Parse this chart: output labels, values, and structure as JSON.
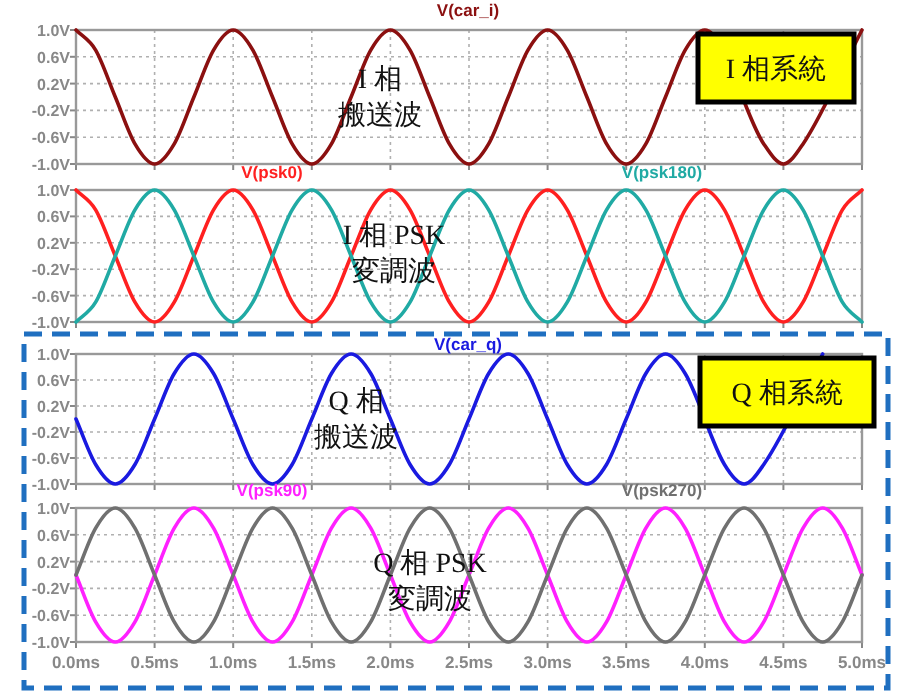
{
  "chart_data": [
    {
      "type": "line",
      "x": [
        0,
        0.125,
        0.25,
        0.375,
        0.5,
        0.625,
        0.75,
        0.875,
        1,
        1.125,
        1.25,
        1.375,
        1.5,
        1.625,
        1.75,
        1.875,
        2,
        2.125,
        2.25,
        2.375,
        2.5,
        2.625,
        2.75,
        2.875,
        3,
        3.125,
        3.25,
        3.375,
        3.5,
        3.625,
        3.75,
        3.875,
        4,
        4.125,
        4.25,
        4.375,
        4.5,
        4.625,
        4.75,
        4.875,
        5
      ],
      "series": [
        {
          "name": "V(car_i)",
          "color": "#8b1010",
          "values": [
            1,
            0.7,
            0,
            -0.7,
            -1,
            -0.7,
            0,
            0.7,
            1,
            0.7,
            0,
            -0.7,
            -1,
            -0.7,
            0,
            0.7,
            1,
            0.7,
            0,
            -0.7,
            -1,
            -0.7,
            0,
            0.7,
            1,
            0.7,
            0,
            -0.7,
            -1,
            -0.7,
            0,
            0.7,
            1,
            null,
            null,
            -0.7,
            -1,
            -0.7,
            null,
            null,
            1
          ]
        }
      ],
      "xlim": [
        0,
        5
      ],
      "xticks": [
        {
          "value": 0,
          "label": null
        },
        {
          "value": 0.5,
          "label": null
        },
        {
          "value": 1,
          "label": null
        },
        {
          "value": 1.5,
          "label": null
        },
        {
          "value": 2,
          "label": null
        },
        {
          "value": 2.5,
          "label": null
        },
        {
          "value": 3,
          "label": null
        },
        {
          "value": 3.5,
          "label": null
        },
        {
          "value": 4,
          "label": null
        },
        {
          "value": 4.5,
          "label": null
        },
        {
          "value": 5,
          "label": null
        }
      ],
      "ylim": [
        -1,
        1
      ],
      "yticks": [
        {
          "value": 1,
          "label": "1.0V"
        },
        {
          "value": 0.6,
          "label": "0.6V"
        },
        {
          "value": 0.2,
          "label": "0.2V"
        },
        {
          "value": -0.2,
          "label": "-0.2V"
        },
        {
          "value": -0.6,
          "label": "-0.6V"
        },
        {
          "value": -1,
          "label": "-1.0V"
        }
      ],
      "tick_labels": "y",
      "grid": true,
      "annotations": [
        "I 相",
        "搬送波",
        "I 相系統"
      ]
    },
    {
      "type": "line",
      "x": [
        0,
        0.125,
        0.25,
        0.375,
        0.5,
        0.625,
        0.75,
        0.875,
        1,
        1.125,
        1.25,
        1.375,
        1.5,
        1.625,
        1.75,
        1.875,
        2,
        2.125,
        2.25,
        2.375,
        2.5,
        2.625,
        2.75,
        2.875,
        3,
        3.125,
        3.25,
        3.375,
        3.5,
        3.625,
        3.75,
        3.875,
        4,
        4.125,
        4.25,
        4.375,
        4.5,
        4.625,
        4.75,
        4.875,
        5
      ],
      "series": [
        {
          "name": "V(psk0)",
          "color": "#ff2020",
          "values": [
            1,
            0.7,
            0,
            -0.7,
            -1,
            -0.7,
            0,
            0.7,
            1,
            0.7,
            0,
            -0.7,
            -1,
            -0.7,
            0,
            0.7,
            1,
            0.7,
            0,
            -0.7,
            -1,
            -0.7,
            0,
            0.7,
            1,
            0.7,
            0,
            -0.7,
            -1,
            -0.7,
            0,
            0.7,
            1,
            0.7,
            0,
            -0.7,
            -1,
            -0.7,
            0,
            0.7,
            1
          ]
        },
        {
          "name": "V(psk180)",
          "color": "#20aaa4",
          "values": [
            -1,
            -0.7,
            0,
            0.7,
            1,
            0.7,
            0,
            -0.7,
            -1,
            -0.7,
            0,
            0.7,
            1,
            0.7,
            0,
            -0.7,
            -1,
            -0.7,
            0,
            0.7,
            1,
            0.7,
            0,
            -0.7,
            -1,
            -0.7,
            0,
            0.7,
            1,
            0.7,
            0,
            -0.7,
            -1,
            -0.7,
            0,
            0.7,
            1,
            0.7,
            0,
            -0.7,
            -1
          ]
        }
      ],
      "xlim": [
        0,
        5
      ],
      "xticks": [
        {
          "value": 0,
          "label": null
        },
        {
          "value": 0.5,
          "label": null
        },
        {
          "value": 1,
          "label": null
        },
        {
          "value": 1.5,
          "label": null
        },
        {
          "value": 2,
          "label": null
        },
        {
          "value": 2.5,
          "label": null
        },
        {
          "value": 3,
          "label": null
        },
        {
          "value": 3.5,
          "label": null
        },
        {
          "value": 4,
          "label": null
        },
        {
          "value": 4.5,
          "label": null
        },
        {
          "value": 5,
          "label": null
        }
      ],
      "ylim": [
        -1,
        1
      ],
      "yticks": [
        {
          "value": 1,
          "label": "1.0V"
        },
        {
          "value": 0.6,
          "label": "0.6V"
        },
        {
          "value": 0.2,
          "label": "0.2V"
        },
        {
          "value": -0.2,
          "label": "-0.2V"
        },
        {
          "value": -0.6,
          "label": "-0.6V"
        },
        {
          "value": -1,
          "label": "-1.0V"
        }
      ],
      "tick_labels": "y",
      "grid": true,
      "annotations": [
        "I 相 PSK",
        "変調波"
      ]
    },
    {
      "type": "line",
      "x": [
        0,
        0.125,
        0.25,
        0.375,
        0.5,
        0.625,
        0.75,
        0.875,
        1,
        1.125,
        1.25,
        1.375,
        1.5,
        1.625,
        1.75,
        1.875,
        2,
        2.125,
        2.25,
        2.375,
        2.5,
        2.625,
        2.75,
        2.875,
        3,
        3.125,
        3.25,
        3.375,
        3.5,
        3.625,
        3.75,
        3.875,
        4,
        4.125,
        4.25,
        4.375,
        4.5,
        4.625,
        4.75
      ],
      "series": [
        {
          "name": "V(car_q)",
          "color": "#1a1ae0",
          "values": [
            0,
            -0.7,
            -1,
            -0.7,
            0,
            0.7,
            1,
            0.7,
            0,
            -0.7,
            -1,
            -0.7,
            0,
            0.7,
            1,
            0.7,
            0,
            -0.7,
            -1,
            -0.7,
            0,
            0.7,
            1,
            0.7,
            0,
            -0.7,
            -1,
            -0.7,
            0,
            0.7,
            1,
            0.7,
            null,
            -0.7,
            -1,
            -0.7,
            null,
            null,
            1
          ]
        }
      ],
      "xlim": [
        0,
        5
      ],
      "xticks": [
        {
          "value": 0,
          "label": null
        },
        {
          "value": 0.5,
          "label": null
        },
        {
          "value": 1,
          "label": null
        },
        {
          "value": 1.5,
          "label": null
        },
        {
          "value": 2,
          "label": null
        },
        {
          "value": 2.5,
          "label": null
        },
        {
          "value": 3,
          "label": null
        },
        {
          "value": 3.5,
          "label": null
        },
        {
          "value": 4,
          "label": null
        },
        {
          "value": 4.5,
          "label": null
        },
        {
          "value": 5,
          "label": null
        }
      ],
      "ylim": [
        -1,
        1
      ],
      "yticks": [
        {
          "value": 1,
          "label": "1.0V"
        },
        {
          "value": 0.6,
          "label": "0.6V"
        },
        {
          "value": 0.2,
          "label": "0.2V"
        },
        {
          "value": -0.2,
          "label": "-0.2V"
        },
        {
          "value": -0.6,
          "label": "-0.6V"
        },
        {
          "value": -1,
          "label": "-1.0V"
        }
      ],
      "tick_labels": "y",
      "grid": true,
      "annotations": [
        "Q 相",
        "搬送波",
        "Q 相系統"
      ]
    },
    {
      "type": "line",
      "x": [
        0,
        0.125,
        0.25,
        0.375,
        0.5,
        0.625,
        0.75,
        0.875,
        1,
        1.125,
        1.25,
        1.375,
        1.5,
        1.625,
        1.75,
        1.875,
        2,
        2.125,
        2.25,
        2.375,
        2.5,
        2.625,
        2.75,
        2.875,
        3,
        3.125,
        3.25,
        3.375,
        3.5,
        3.625,
        3.75,
        3.875,
        4,
        4.125,
        4.25,
        4.375,
        4.5,
        4.625,
        4.75,
        4.875,
        5.0
      ],
      "series": [
        {
          "name": "V(psk90)",
          "color": "#ff20ff",
          "values": [
            0,
            -0.7,
            -1,
            -0.7,
            0,
            0.7,
            1,
            0.7,
            0,
            -0.7,
            -1,
            -0.7,
            0,
            0.7,
            1,
            0.7,
            0,
            -0.7,
            -1,
            -0.7,
            0,
            0.7,
            1,
            0.7,
            0,
            -0.7,
            -1,
            -0.7,
            0,
            0.7,
            1,
            0.7,
            0,
            -0.7,
            -1,
            -0.7,
            0,
            0.7,
            1,
            0.7,
            0
          ]
        },
        {
          "name": "V(psk270)",
          "color": "#707070",
          "values": [
            0,
            0.7,
            1,
            0.7,
            0,
            -0.7,
            -1,
            -0.7,
            0,
            0.7,
            1,
            0.7,
            0,
            -0.7,
            -1,
            -0.7,
            0,
            0.7,
            1,
            0.7,
            0,
            -0.7,
            -1,
            -0.7,
            0,
            0.7,
            1,
            0.7,
            0,
            -0.7,
            -1,
            -0.7,
            0,
            0.7,
            1,
            0.7,
            0,
            -0.7,
            -1,
            -0.7,
            0
          ]
        }
      ],
      "xlim": [
        0,
        5
      ],
      "xticks": [
        {
          "value": 0,
          "label": "0.0ms"
        },
        {
          "value": 0.5,
          "label": "0.5ms"
        },
        {
          "value": 1,
          "label": "1.0ms"
        },
        {
          "value": 1.5,
          "label": "1.5ms"
        },
        {
          "value": 2,
          "label": "2.0ms"
        },
        {
          "value": 2.5,
          "label": "2.5ms"
        },
        {
          "value": 3,
          "label": "3.0ms"
        },
        {
          "value": 3.5,
          "label": "3.5ms"
        },
        {
          "value": 4,
          "label": "4.0ms"
        },
        {
          "value": 4.5,
          "label": "4.5ms"
        },
        {
          "value": 5,
          "label": "5.0ms"
        }
      ],
      "ylim": [
        -1,
        1
      ],
      "yticks": [
        {
          "value": 1,
          "label": "1.0V"
        },
        {
          "value": 0.6,
          "label": "0.6V"
        },
        {
          "value": 0.2,
          "label": "0.2V"
        },
        {
          "value": -0.2,
          "label": "-0.2V"
        },
        {
          "value": -0.6,
          "label": "-0.6V"
        },
        {
          "value": -1,
          "label": "-1.0V"
        }
      ],
      "grid": true,
      "annotations": [
        "Q 相 PSK",
        "変調波"
      ]
    }
  ]
}
